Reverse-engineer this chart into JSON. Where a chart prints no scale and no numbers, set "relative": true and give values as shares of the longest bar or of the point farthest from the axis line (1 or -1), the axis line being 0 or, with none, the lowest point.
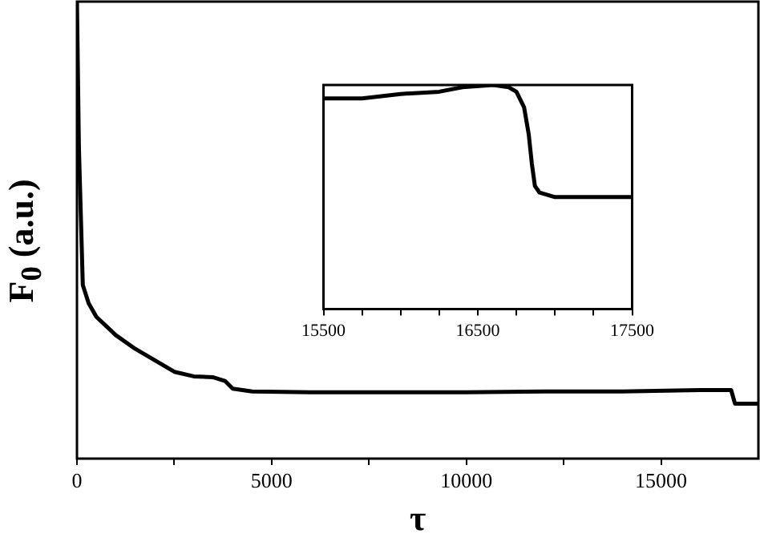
{
  "chart_data": [
    {
      "type": "line",
      "xlabel": "τ",
      "ylabel": "F$_{0}$ (a.u.)",
      "relative": true,
      "color": "#000000",
      "marker": "none",
      "line_style": "solid",
      "legend": false,
      "grid": false,
      "tick_labels": "x",
      "xlim": [
        0,
        17500
      ],
      "xticks": [
        0,
        {
          "value": 2500,
          "label": null
        },
        5000,
        {
          "value": 7500,
          "label": null
        },
        10000,
        {
          "value": 12500,
          "label": null
        },
        15000
      ],
      "x": [
        0,
        50,
        150,
        300,
        500,
        1000,
        1500,
        2000,
        2500,
        3000,
        3500,
        3800,
        4000,
        4500,
        6000,
        8000,
        10000,
        12000,
        14000,
        16000,
        16800,
        16900,
        17000,
        17500
      ],
      "values": [
        1.0,
        0.68,
        0.38,
        0.34,
        0.31,
        0.27,
        0.24,
        0.215,
        0.19,
        0.18,
        0.178,
        0.17,
        0.153,
        0.147,
        0.145,
        0.145,
        0.145,
        0.147,
        0.147,
        0.15,
        0.15,
        0.12,
        0.12,
        0.12
      ]
    },
    {
      "type": "line",
      "relative": true,
      "color": "#000000",
      "marker": "none",
      "line_style": "solid",
      "legend": false,
      "grid": false,
      "tick_labels": "x",
      "xlim": [
        15500,
        17500
      ],
      "xticks": [
        15500,
        {
          "value": 15750,
          "label": null
        },
        {
          "value": 16000,
          "label": null
        },
        {
          "value": 16250,
          "label": null
        },
        16500,
        {
          "value": 16750,
          "label": null
        },
        {
          "value": 17000,
          "label": null
        },
        {
          "value": 17250,
          "label": null
        },
        17500
      ],
      "x": [
        15500,
        15750,
        16000,
        16250,
        16400,
        16600,
        16700,
        16750,
        16800,
        16830,
        16850,
        16870,
        16900,
        17000,
        17250,
        17500
      ],
      "values": [
        0.94,
        0.94,
        0.96,
        0.97,
        0.99,
        1.0,
        0.99,
        0.97,
        0.9,
        0.78,
        0.65,
        0.55,
        0.52,
        0.5,
        0.5,
        0.5
      ]
    }
  ]
}
